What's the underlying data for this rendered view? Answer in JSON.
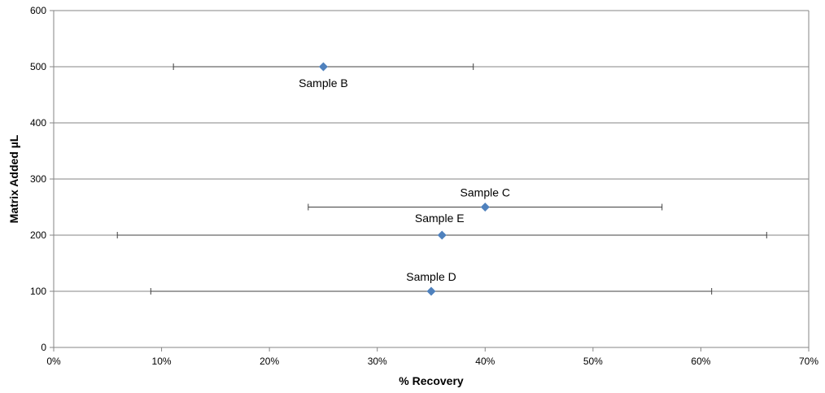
{
  "chart_data": {
    "type": "scatter",
    "title": "",
    "xlabel": "% Recovery",
    "ylabel": "Matrix Added µL",
    "xlim": [
      0,
      0.7
    ],
    "ylim": [
      0,
      600
    ],
    "x_ticks": [
      0,
      0.1,
      0.2,
      0.3,
      0.4,
      0.5,
      0.6,
      0.7
    ],
    "x_tick_labels": [
      "0%",
      "10%",
      "20%",
      "30%",
      "40%",
      "50%",
      "60%",
      "70%"
    ],
    "y_ticks": [
      0,
      100,
      200,
      300,
      400,
      500,
      600
    ],
    "y_tick_labels": [
      "0",
      "100",
      "200",
      "300",
      "400",
      "500",
      "600"
    ],
    "grid": "horizontal",
    "legend": "none",
    "marker": "diamond",
    "color": "#4f81bd",
    "points": [
      {
        "label": "Sample B",
        "x": 0.25,
        "y": 500,
        "x_err_low": 0.111,
        "x_err_high": 0.389,
        "label_position": "below"
      },
      {
        "label": "Sample C",
        "x": 0.4,
        "y": 250,
        "x_err_low": 0.236,
        "x_err_high": 0.564,
        "label_position": "above"
      },
      {
        "label": "Sample E",
        "x": 0.36,
        "y": 200,
        "x_err_low": 0.059,
        "x_err_high": 0.661,
        "label_position": "above-left"
      },
      {
        "label": "Sample D",
        "x": 0.35,
        "y": 100,
        "x_err_low": 0.09,
        "x_err_high": 0.61,
        "label_position": "above"
      }
    ]
  }
}
